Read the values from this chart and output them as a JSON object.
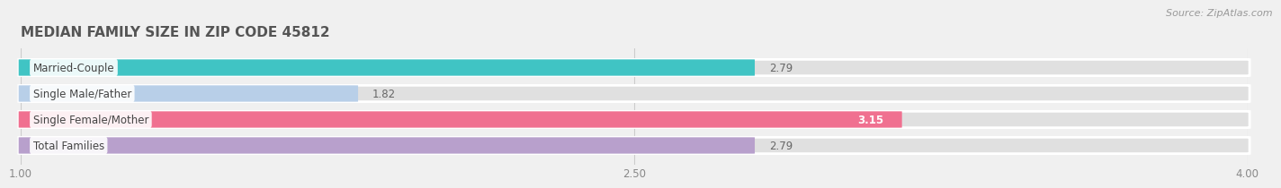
{
  "title": "MEDIAN FAMILY SIZE IN ZIP CODE 45812",
  "source": "Source: ZipAtlas.com",
  "categories": [
    "Married-Couple",
    "Single Male/Father",
    "Single Female/Mother",
    "Total Families"
  ],
  "values": [
    2.79,
    1.82,
    3.15,
    2.79
  ],
  "colors": [
    "#40c4c4",
    "#b8cfe8",
    "#f07090",
    "#b8a0cc"
  ],
  "xlim_data": [
    1.0,
    4.0
  ],
  "xticks": [
    1.0,
    2.5,
    4.0
  ],
  "xtick_labels": [
    "1.00",
    "2.50",
    "4.00"
  ],
  "bar_height": 0.62,
  "background_color": "#f0f0f0",
  "bar_bg_color": "#e0e0e0",
  "label_fontsize": 8.5,
  "value_fontsize": 8.5,
  "title_fontsize": 11,
  "source_fontsize": 8
}
